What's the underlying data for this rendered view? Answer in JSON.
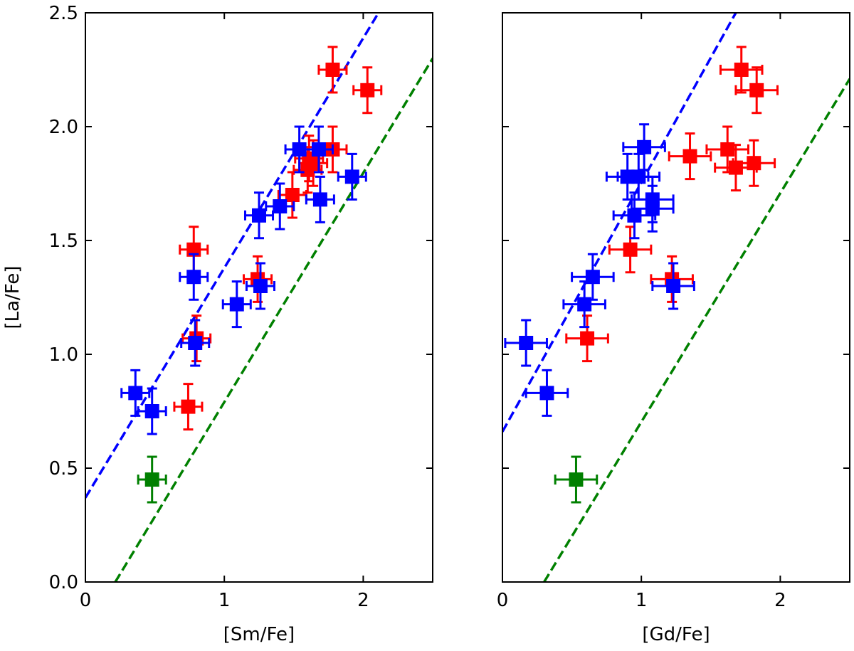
{
  "chart_data": [
    {
      "type": "scatter",
      "xlabel": "[Sm/Fe]",
      "ylabel": "[La/Fe]",
      "xlim": [
        0,
        2.5
      ],
      "ylim": [
        0,
        2.5
      ],
      "xticks": [
        0,
        1,
        2
      ],
      "yticks": [
        {
          "value": 0,
          "label": "0.0"
        },
        0.5,
        {
          "value": 1,
          "label": "1.0"
        },
        1.5,
        {
          "value": 2,
          "label": "2.0"
        },
        2.5
      ],
      "show_ytick_labels": true,
      "lines": [
        {
          "color": "#0000ff",
          "x": [
            0,
            2.11
          ],
          "y": [
            0.37,
            2.5
          ]
        },
        {
          "color": "#008000",
          "x": [
            0.215,
            2.5
          ],
          "y": [
            0,
            2.3
          ]
        }
      ],
      "series": [
        {
          "color": "#ff0000",
          "xerr": 0.1,
          "yerr": 0.1,
          "x": [
            1.78,
            2.03,
            1.78,
            1.61,
            1.6,
            1.64,
            1.49,
            0.78,
            1.24,
            0.8,
            0.74
          ],
          "y": [
            2.25,
            2.16,
            1.9,
            1.86,
            1.81,
            1.84,
            1.7,
            1.46,
            1.33,
            1.07,
            0.77
          ]
        },
        {
          "color": "#0000ff",
          "xerr": 0.1,
          "yerr": 0.1,
          "x": [
            1.54,
            1.68,
            1.92,
            1.69,
            1.4,
            1.25,
            0.78,
            1.26,
            1.09,
            0.79,
            0.36,
            0.48
          ],
          "y": [
            1.9,
            1.9,
            1.78,
            1.68,
            1.65,
            1.61,
            1.34,
            1.3,
            1.22,
            1.05,
            0.83,
            0.75
          ]
        },
        {
          "color": "#008000",
          "xerr": 0.1,
          "yerr": 0.1,
          "x": [
            0.48
          ],
          "y": [
            0.45
          ]
        }
      ]
    },
    {
      "type": "scatter",
      "xlabel": "[Gd/Fe]",
      "xlim": [
        0,
        2.5
      ],
      "ylim": [
        0,
        2.5
      ],
      "xticks": [
        0,
        1,
        2
      ],
      "yticks": [
        0,
        0.5,
        1,
        1.5,
        2,
        2.5
      ],
      "show_ytick_labels": false,
      "lines": [
        {
          "color": "#0000ff",
          "x": [
            0,
            1.68
          ],
          "y": [
            0.66,
            2.5
          ]
        },
        {
          "color": "#008000",
          "x": [
            0.3,
            2.5
          ],
          "y": [
            0,
            2.21
          ]
        }
      ],
      "series": [
        {
          "color": "#ff0000",
          "xerr": 0.15,
          "yerr": 0.1,
          "x": [
            1.72,
            1.83,
            1.62,
            1.35,
            1.68,
            1.81,
            0.92,
            1.22,
            0.61
          ],
          "y": [
            2.25,
            2.16,
            1.9,
            1.87,
            1.82,
            1.84,
            1.46,
            1.33,
            1.07
          ]
        },
        {
          "color": "#0000ff",
          "xerr": 0.15,
          "yerr": 0.1,
          "x": [
            1.02,
            0.9,
            0.98,
            1.08,
            1.08,
            0.95,
            0.65,
            1.23,
            0.59,
            0.17,
            0.32
          ],
          "y": [
            1.91,
            1.78,
            1.78,
            1.68,
            1.64,
            1.61,
            1.34,
            1.3,
            1.22,
            1.05,
            0.83
          ]
        },
        {
          "color": "#008000",
          "xerr": 0.15,
          "yerr": 0.1,
          "x": [
            0.53
          ],
          "y": [
            0.45
          ]
        }
      ]
    }
  ]
}
